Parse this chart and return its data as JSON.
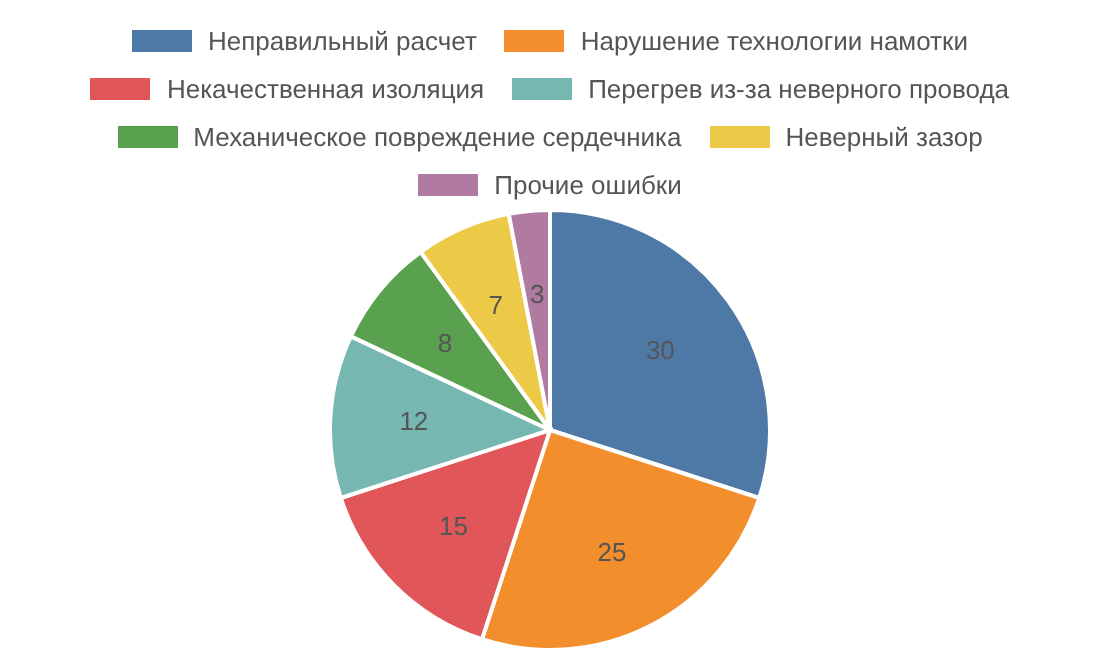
{
  "chart_data": {
    "type": "pie",
    "categories": [
      "Неправильный расчет",
      "Нарушение технологии намотки",
      "Некачественная изоляция",
      "Перегрев из-за неверного провода",
      "Механическое повреждение сердечника",
      "Неверный зазор",
      "Прочие ошибки"
    ],
    "values": [
      30,
      25,
      15,
      12,
      8,
      7,
      3
    ],
    "colors": [
      "#4e79a7",
      "#f28e2b",
      "#e15759",
      "#76b7b2",
      "#59a14f",
      "#edc948",
      "#b07aa1"
    ],
    "data_labels": true,
    "legend": "top"
  }
}
